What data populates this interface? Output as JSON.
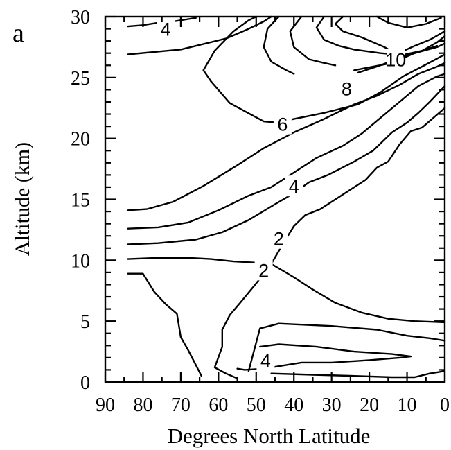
{
  "panel_label": "a",
  "chart_data": {
    "type": "contour",
    "xlabel": "Degrees North Latitude",
    "ylabel": "Altitude (km)",
    "xlim": [
      90,
      0
    ],
    "ylim": [
      0,
      30
    ],
    "x_ticks": [
      90,
      80,
      70,
      60,
      50,
      40,
      30,
      20,
      10,
      0
    ],
    "y_ticks": [
      0,
      5,
      10,
      15,
      20,
      25,
      30
    ],
    "grid": false,
    "contour_labels": [
      {
        "text": "4",
        "lat": 74,
        "alt": 29
      },
      {
        "text": "10",
        "lat": 13,
        "alt": 26.5
      },
      {
        "text": "8",
        "lat": 26,
        "alt": 24.1
      },
      {
        "text": "6",
        "lat": 43,
        "alt": 21.2
      },
      {
        "text": "4",
        "lat": 40,
        "alt": 16.1
      },
      {
        "text": "2",
        "lat": 44,
        "alt": 11.8
      },
      {
        "text": "2",
        "lat": 48,
        "alt": 9.2
      },
      {
        "text": "4",
        "lat": 47.5,
        "alt": 1.8
      }
    ],
    "contours": [
      {
        "points": [
          [
            84,
            29.2
          ],
          [
            80,
            29.3
          ],
          [
            76,
            29.5
          ],
          [
            72,
            29.6
          ],
          [
            68,
            29.8
          ],
          [
            66,
            29.9
          ]
        ]
      },
      {
        "points": [
          [
            84,
            26.9
          ],
          [
            70,
            27.3
          ],
          [
            58,
            28.2
          ],
          [
            52,
            29.0
          ],
          [
            48,
            29.6
          ],
          [
            46,
            30
          ]
        ]
      },
      {
        "points": [
          [
            18,
            30
          ],
          [
            15,
            29.5
          ],
          [
            10,
            29.1
          ],
          [
            5,
            29.4
          ],
          [
            1,
            29.9
          ]
        ]
      },
      {
        "points": [
          [
            62,
            24.7
          ],
          [
            64,
            25.6
          ],
          [
            61,
            27.2
          ],
          [
            56,
            28.8
          ],
          [
            52,
            29.7
          ],
          [
            50,
            30
          ]
        ]
      },
      {
        "points": [
          [
            44,
            30
          ],
          [
            47,
            29.0
          ],
          [
            48,
            27.5
          ],
          [
            46,
            26.3
          ],
          [
            42,
            25.6
          ],
          [
            40,
            25.3
          ]
        ]
      },
      {
        "points": [
          [
            38,
            30
          ],
          [
            41,
            28.8
          ],
          [
            40,
            27.5
          ],
          [
            36,
            26.5
          ],
          [
            32,
            26.2
          ],
          [
            29,
            26.0
          ]
        ]
      },
      {
        "points": [
          [
            32,
            30
          ],
          [
            34,
            29.1
          ],
          [
            32,
            28.1
          ],
          [
            28,
            27.6
          ],
          [
            24,
            27.3
          ],
          [
            17,
            27.0
          ],
          [
            13,
            26.9
          ],
          [
            8,
            27.6
          ],
          [
            4,
            28.1
          ],
          [
            0,
            28.8
          ]
        ]
      },
      {
        "points": [
          [
            27,
            30
          ],
          [
            29,
            29.4
          ],
          [
            27,
            28.8
          ],
          [
            22,
            28.3
          ],
          [
            16,
            27.5
          ],
          [
            12,
            26.8
          ],
          [
            6,
            27.2
          ],
          [
            2,
            27.9
          ],
          [
            0,
            28.4
          ]
        ]
      },
      {
        "points": [
          [
            62,
            24.7
          ],
          [
            57,
            22.9
          ],
          [
            51,
            21.9
          ],
          [
            48,
            21.4
          ],
          [
            44,
            21.3
          ],
          [
            40,
            21.6
          ],
          [
            32,
            22.1
          ],
          [
            23,
            22.8
          ],
          [
            17,
            23.8
          ],
          [
            11,
            25.1
          ],
          [
            6,
            25.9
          ],
          [
            0,
            26.9
          ]
        ]
      },
      {
        "points": [
          [
            24,
            25.6
          ],
          [
            14,
            26.2
          ],
          [
            8,
            27.0
          ],
          [
            2,
            27.5
          ],
          [
            0,
            27.8
          ]
        ]
      },
      {
        "points": [
          [
            23,
            25.4
          ],
          [
            18,
            25.9
          ],
          [
            12,
            26.6
          ],
          [
            6,
            27.2
          ],
          [
            2,
            27.6
          ]
        ]
      },
      {
        "points": [
          [
            84,
            14.1
          ],
          [
            79,
            14.2
          ],
          [
            72,
            14.8
          ],
          [
            64,
            16.1
          ],
          [
            55,
            17.8
          ],
          [
            48,
            19.2
          ],
          [
            40,
            20.5
          ],
          [
            32,
            21.6
          ],
          [
            24,
            22.8
          ],
          [
            18,
            23.5
          ],
          [
            12,
            24.4
          ],
          [
            7,
            25.3
          ],
          [
            2,
            25.9
          ],
          [
            0,
            26.2
          ]
        ]
      },
      {
        "points": [
          [
            84,
            12.6
          ],
          [
            76,
            12.7
          ],
          [
            68,
            13.1
          ],
          [
            60,
            14.1
          ],
          [
            52,
            15.3
          ],
          [
            46,
            16.0
          ],
          [
            41,
            17.0
          ],
          [
            34,
            18.4
          ],
          [
            27,
            19.4
          ],
          [
            22,
            20.4
          ],
          [
            17,
            21.7
          ],
          [
            12,
            23.0
          ],
          [
            7,
            24.3
          ],
          [
            2,
            25.1
          ],
          [
            0,
            25.3
          ]
        ]
      },
      {
        "points": [
          [
            84,
            11.3
          ],
          [
            76,
            11.4
          ],
          [
            66,
            11.7
          ],
          [
            59,
            12.3
          ],
          [
            52,
            13.3
          ],
          [
            45,
            14.6
          ],
          [
            40,
            15.5
          ],
          [
            36,
            16.4
          ],
          [
            31,
            17.0
          ],
          [
            24,
            18.1
          ],
          [
            19,
            19.0
          ],
          [
            14,
            20.5
          ],
          [
            10,
            21.3
          ],
          [
            7,
            22.1
          ],
          [
            4,
            23.0
          ],
          [
            0,
            24.3
          ]
        ]
      },
      {
        "points": [
          [
            84,
            10.1
          ],
          [
            76,
            10.2
          ],
          [
            68,
            10.2
          ],
          [
            62,
            10.1
          ],
          [
            56,
            9.9
          ],
          [
            50,
            9.8
          ],
          [
            46,
            9.7
          ],
          [
            43,
            11.3
          ],
          [
            40,
            12.8
          ],
          [
            37,
            13.7
          ],
          [
            33,
            14.2
          ],
          [
            27,
            15.4
          ],
          [
            21,
            16.6
          ],
          [
            18,
            17.6
          ],
          [
            15,
            18.1
          ],
          [
            12,
            19.5
          ],
          [
            9,
            20.6
          ],
          [
            6,
            20.9
          ],
          [
            3,
            21.7
          ],
          [
            0,
            22.5
          ]
        ]
      },
      {
        "points": [
          [
            46,
            9.7
          ],
          [
            40,
            8.6
          ],
          [
            35,
            7.6
          ],
          [
            29,
            6.5
          ],
          [
            22,
            5.7
          ],
          [
            15,
            5.2
          ],
          [
            8,
            5.0
          ],
          [
            0,
            4.9
          ]
        ]
      },
      {
        "points": [
          [
            84,
            8.9
          ],
          [
            80,
            8.9
          ],
          [
            77,
            7.4
          ],
          [
            74,
            6.4
          ],
          [
            71,
            5.6
          ],
          [
            70,
            3.7
          ],
          [
            68,
            2.6
          ],
          [
            66,
            1.4
          ],
          [
            64.5,
            0.5
          ]
        ]
      },
      {
        "points": [
          [
            46,
            9.7
          ],
          [
            50,
            8.1
          ],
          [
            54,
            6.6
          ],
          [
            57,
            5.5
          ],
          [
            59,
            4.3
          ],
          [
            59,
            2.9
          ],
          [
            61,
            1.2
          ],
          [
            58,
            0.7
          ],
          [
            55,
            0.3
          ]
        ]
      },
      {
        "points": [
          [
            52,
            0.9
          ],
          [
            49,
            4.4
          ],
          [
            44,
            4.8
          ],
          [
            30,
            4.6
          ],
          [
            18,
            4.3
          ],
          [
            10,
            3.8
          ],
          [
            4,
            3.6
          ],
          [
            0,
            3.4
          ]
        ]
      },
      {
        "points": [
          [
            49,
            2.9
          ],
          [
            44,
            3.1
          ],
          [
            34,
            2.9
          ],
          [
            24,
            2.5
          ],
          [
            14,
            2.3
          ],
          [
            9,
            2.1
          ],
          [
            12,
            2.0
          ],
          [
            20,
            1.8
          ],
          [
            30,
            1.6
          ],
          [
            38,
            1.6
          ],
          [
            46,
            1.2
          ],
          [
            48,
            1.1
          ],
          [
            53,
            1.0
          ],
          [
            55,
            1.1
          ]
        ]
      },
      {
        "points": [
          [
            46,
            0.7
          ],
          [
            35,
            0.6
          ],
          [
            24,
            0.5
          ],
          [
            14,
            0.4
          ],
          [
            8,
            0.4
          ],
          [
            4,
            0.7
          ],
          [
            0,
            0.9
          ]
        ]
      }
    ]
  }
}
